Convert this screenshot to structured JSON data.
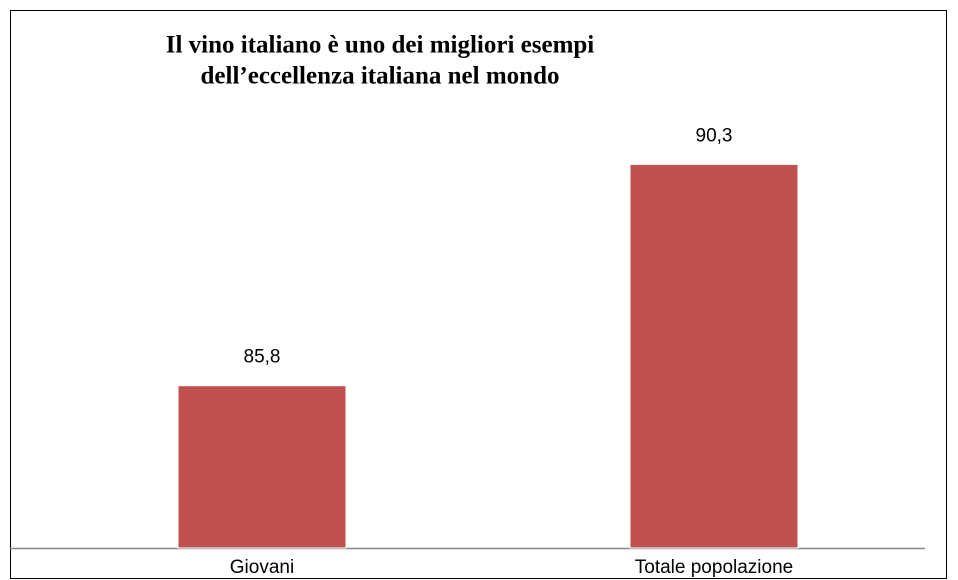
{
  "chart_data": {
    "type": "bar",
    "title": [
      "Il vino italiano è uno dei migliori esempi",
      "dell’eccellenza italiana nel mondo"
    ],
    "categories": [
      "Giovani",
      "Totale popolazione"
    ],
    "values": [
      85.8,
      90.3
    ],
    "value_labels": [
      "85,8",
      "90,3"
    ],
    "color": "#c0504d",
    "ylim": [
      82.5,
      91
    ]
  }
}
